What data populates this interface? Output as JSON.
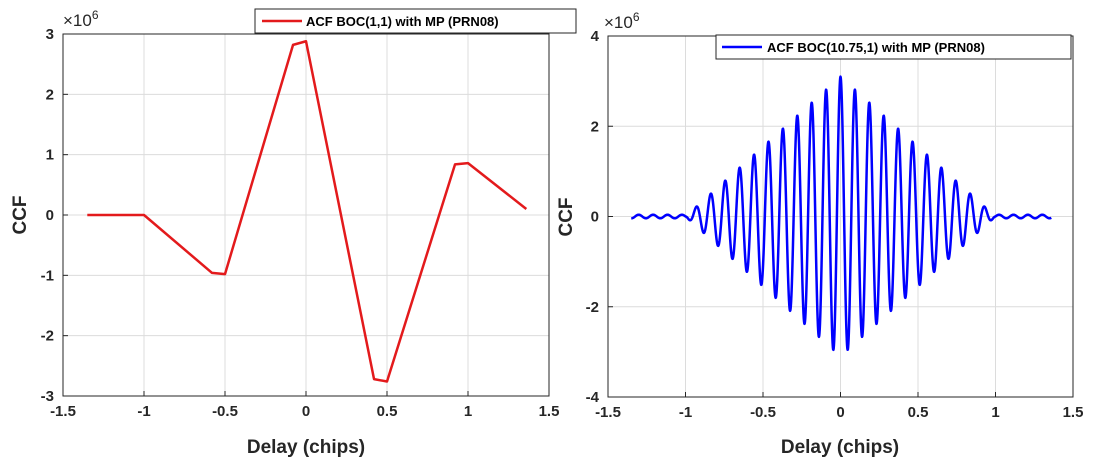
{
  "chart_data": [
    {
      "type": "line",
      "title": "",
      "xlabel": "Delay (chips)",
      "ylabel": "CCF",
      "xlim": [
        -1.5,
        1.5
      ],
      "ylim": [
        -3,
        3
      ],
      "xticks": [
        "-1.5",
        "-1",
        "-0.5",
        "0",
        "0.5",
        "1",
        "1.5"
      ],
      "yticks": [
        "-3",
        "-2",
        "-1",
        "0",
        "1",
        "2",
        "3"
      ],
      "y_exponent_base": "×10",
      "y_exponent": "6",
      "grid": true,
      "legend_position": "top-right",
      "color": "#e31a1c",
      "series": [
        {
          "name": "ACF BOC(1,1) with MP (PRN08)",
          "x": [
            -1.35,
            -1.0,
            -0.58,
            -0.5,
            -0.08,
            0.0,
            0.42,
            0.5,
            0.92,
            1.0,
            1.36
          ],
          "y": [
            0.0,
            0.0,
            -0.96,
            -0.98,
            2.82,
            2.88,
            -2.72,
            -2.76,
            0.84,
            0.86,
            0.1
          ]
        }
      ]
    },
    {
      "type": "line",
      "title": "",
      "xlabel": "Delay (chips)",
      "ylabel": "CCF",
      "xlim": [
        -1.5,
        1.5
      ],
      "ylim": [
        -4,
        4
      ],
      "xticks": [
        "-1.5",
        "-1",
        "-0.5",
        "0",
        "0.5",
        "1",
        "1.5"
      ],
      "yticks": [
        "-4",
        "-2",
        "0",
        "2",
        "4"
      ],
      "y_exponent_base": "×10",
      "y_exponent": "6",
      "grid": true,
      "legend_position": "top-right",
      "color": "#0000ff",
      "series": [
        {
          "name": "ACF BOC(10.75,1) with MP (PRN08)",
          "x_range": [
            -1.35,
            1.36
          ],
          "period": 0.093,
          "envelope_peak": 3.1,
          "envelope_halfwidth": 1.0,
          "near_zero_amplitude": 0.04
        }
      ]
    }
  ]
}
